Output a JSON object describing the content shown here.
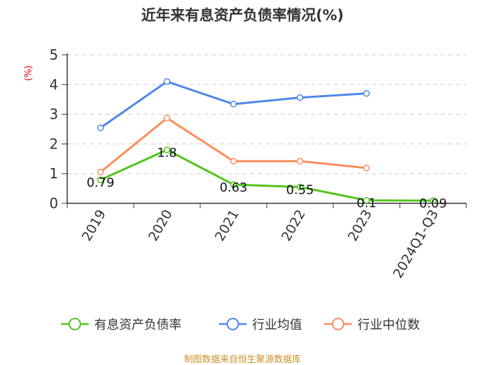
{
  "chart_data": {
    "type": "line",
    "title": "近年来有息资产负债率情况(%)",
    "ylabel": "(%)",
    "ylim": [
      0,
      5
    ],
    "yticks": [
      "0",
      "1",
      "2",
      "3",
      "4",
      "5"
    ],
    "grid": true,
    "legend_position": "bottom",
    "categories": [
      "2019",
      "2020",
      "2021",
      "2022",
      "2023",
      "2024Q1-Q3"
    ],
    "series": [
      {
        "name": "有息资产负债率",
        "color": "#52c41a",
        "values": [
          0.79,
          1.8,
          0.63,
          0.55,
          0.1,
          0.09
        ],
        "labels": [
          "0.79",
          "1.8",
          "0.63",
          "0.55",
          "0.1",
          "0.09"
        ]
      },
      {
        "name": "行业均值",
        "color": "#4f86e8",
        "values": [
          2.54,
          4.1,
          3.34,
          3.56,
          3.7,
          null
        ]
      },
      {
        "name": "行业中位数",
        "color": "#ff8c5a",
        "values": [
          1.05,
          2.87,
          1.42,
          1.42,
          1.19,
          null
        ]
      }
    ]
  },
  "source": "制图数据来自恒生聚源数据库"
}
